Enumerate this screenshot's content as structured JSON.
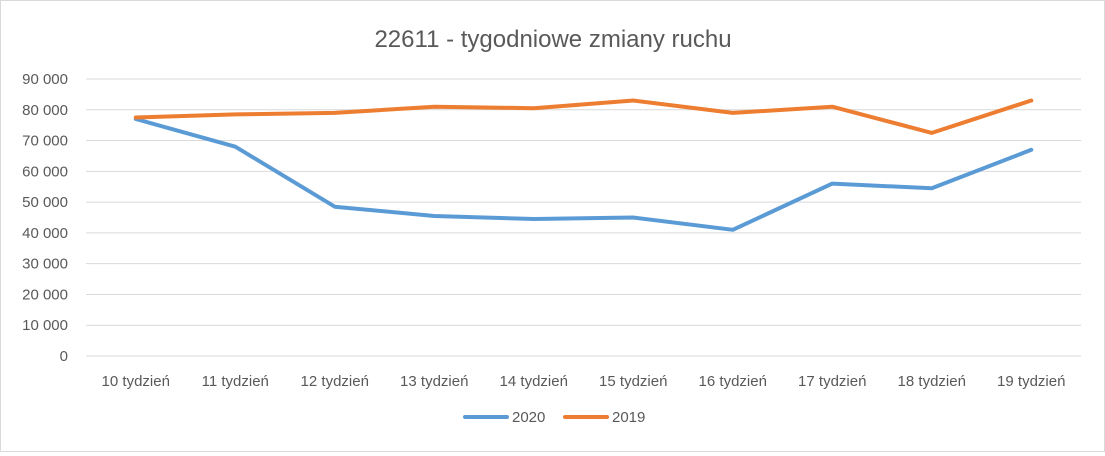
{
  "chart_data": {
    "type": "line",
    "title": "22611 - tygodniowe zmiany ruchu",
    "xlabel": "",
    "ylabel": "",
    "categories": [
      "10 tydzień",
      "11 tydzień",
      "12 tydzień",
      "13 tydzień",
      "14 tydzień",
      "15 tydzień",
      "16 tydzień",
      "17 tydzień",
      "18 tydzień",
      "19 tydzień"
    ],
    "y_ticks": [
      "0",
      "10 000",
      "20 000",
      "30 000",
      "40 000",
      "50 000",
      "60 000",
      "70 000",
      "80 000",
      "90 000"
    ],
    "ylim": [
      0,
      90000
    ],
    "grid": true,
    "legend_position": "bottom",
    "series": [
      {
        "name": "2020",
        "color": "#5b9bd5",
        "values": [
          77000,
          68000,
          48500,
          45500,
          44500,
          45000,
          41000,
          56000,
          54500,
          67000
        ]
      },
      {
        "name": "2019",
        "color": "#ed7d31",
        "values": [
          77500,
          78500,
          79000,
          81000,
          80500,
          83000,
          79000,
          81000,
          72500,
          83000
        ]
      }
    ]
  }
}
